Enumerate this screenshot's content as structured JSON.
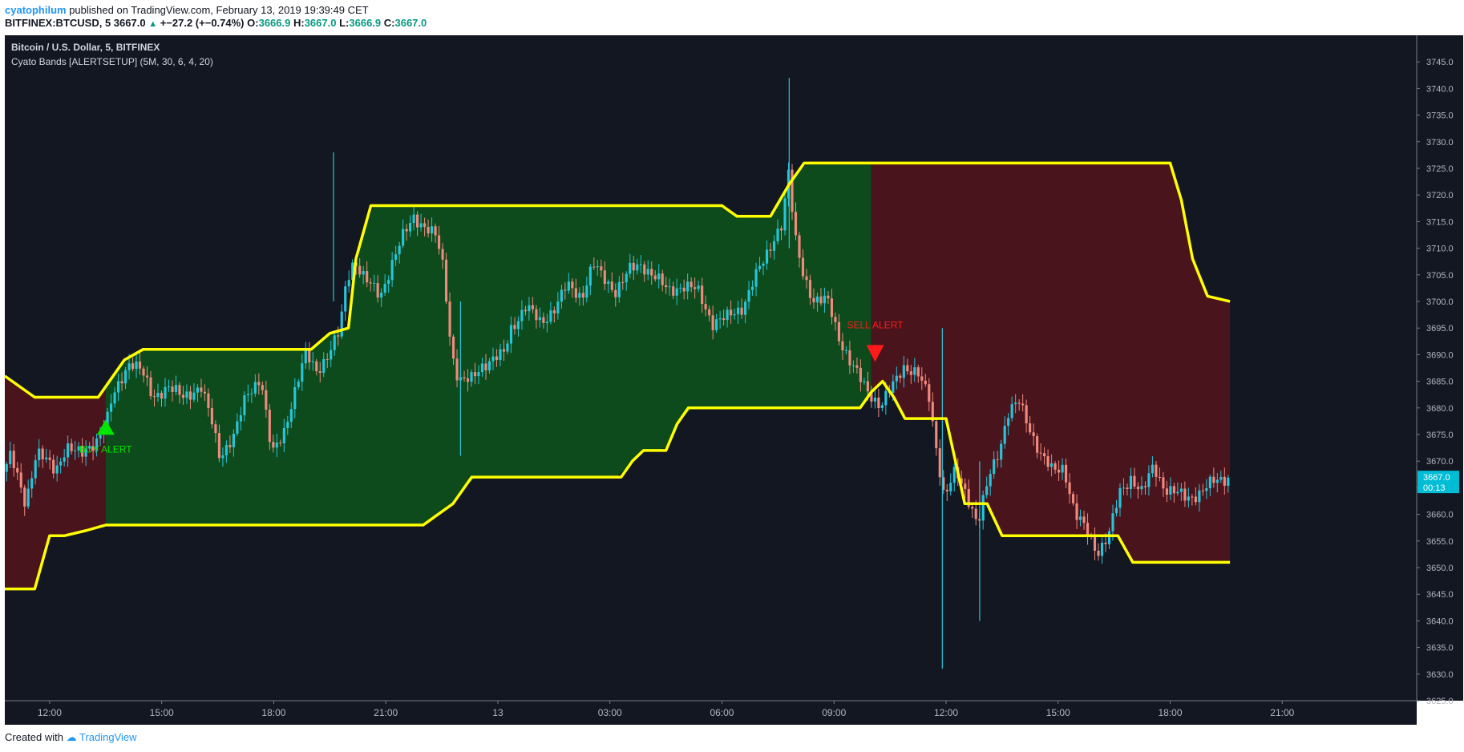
{
  "header": {
    "author": "cyatophilum",
    "published": "published on TradingView.com, February 13, 2019 19:39:49 CET",
    "symbol": "BITFINEX:BTCUSD, 5",
    "last": "3667.0",
    "change": "+−27.2 (+−0.74%)",
    "o_label": "O:",
    "o": "3666.9",
    "h_label": "H:",
    "h": "3667.0",
    "l_label": "L:",
    "l": "3666.9",
    "c_label": "C:",
    "c": "3667.0"
  },
  "footer": {
    "created": "Created with",
    "brand": "TradingView"
  },
  "colors": {
    "background": "#131722",
    "bull_candle": "#26c6da",
    "bear_candle": "#ef8a7d",
    "band": "#ffff00",
    "bull_fill": "#0d4a1c",
    "bear_fill": "#4a141c",
    "buy": "#00e600",
    "sell": "#ff1a1a"
  },
  "chart_data": {
    "type": "candlestick",
    "title": "Bitcoin / U.S. Dollar, 5, BITFINEX",
    "subtitle": "Cyato Bands [ALERTSETUP] (5M, 30, 6, 4, 20)",
    "ylim": [
      3625,
      3750
    ],
    "y_ticks": [
      "3745.0",
      "3740.0",
      "3735.0",
      "3730.0",
      "3725.0",
      "3720.0",
      "3715.0",
      "3710.0",
      "3705.0",
      "3700.0",
      "3695.0",
      "3690.0",
      "3685.0",
      "3680.0",
      "3675.0",
      "3670.0",
      "3665.0",
      "3660.0",
      "3655.0",
      "3650.0",
      "3645.0",
      "3640.0",
      "3635.0",
      "3630.0",
      "3625.0"
    ],
    "x_ticks": [
      {
        "label": "12:00",
        "t": 0
      },
      {
        "label": "15:00",
        "t": 3
      },
      {
        "label": "18:00",
        "t": 6
      },
      {
        "label": "21:00",
        "t": 9
      },
      {
        "label": "13",
        "t": 12
      },
      {
        "label": "03:00",
        "t": 15
      },
      {
        "label": "06:00",
        "t": 18
      },
      {
        "label": "09:00",
        "t": 21
      },
      {
        "label": "12:00",
        "t": 24
      },
      {
        "label": "15:00",
        "t": 27
      },
      {
        "label": "18:00",
        "t": 30
      },
      {
        "label": "21:00",
        "t": 33
      }
    ],
    "x_range_hours": [
      -1.2,
      36.6
    ],
    "price_window_hours": [
      -1.2,
      31.6
    ],
    "current_price_tag": "3667.0",
    "countdown": "00:13",
    "price_path": [
      [
        -1.2,
        3668
      ],
      [
        -1.0,
        3671
      ],
      [
        -0.6,
        3662
      ],
      [
        -0.3,
        3672
      ],
      [
        0.2,
        3668
      ],
      [
        0.5,
        3673
      ],
      [
        0.9,
        3671
      ],
      [
        1.3,
        3674
      ],
      [
        1.6,
        3678
      ],
      [
        1.7,
        3681
      ],
      [
        2.0,
        3686
      ],
      [
        2.2,
        3689
      ],
      [
        2.5,
        3687
      ],
      [
        2.8,
        3682
      ],
      [
        3.2,
        3684
      ],
      [
        3.6,
        3682
      ],
      [
        4.1,
        3684
      ],
      [
        4.4,
        3677
      ],
      [
        4.6,
        3671
      ],
      [
        5.0,
        3675
      ],
      [
        5.3,
        3682
      ],
      [
        5.7,
        3686
      ],
      [
        6.0,
        3671
      ],
      [
        6.3,
        3675
      ],
      [
        6.6,
        3683
      ],
      [
        6.9,
        3690
      ],
      [
        7.2,
        3687
      ],
      [
        7.5,
        3690
      ],
      [
        7.8,
        3694
      ],
      [
        8.0,
        3704
      ],
      [
        8.2,
        3708
      ],
      [
        8.5,
        3704
      ],
      [
        8.9,
        3701
      ],
      [
        9.2,
        3707
      ],
      [
        9.5,
        3712
      ],
      [
        9.8,
        3716
      ],
      [
        10.1,
        3714
      ],
      [
        10.4,
        3712
      ],
      [
        10.6,
        3706
      ],
      [
        10.8,
        3691
      ],
      [
        11.0,
        3685
      ],
      [
        11.3,
        3685
      ],
      [
        11.6,
        3688
      ],
      [
        11.9,
        3689
      ],
      [
        12.2,
        3690
      ],
      [
        12.4,
        3695
      ],
      [
        12.8,
        3699
      ],
      [
        13.2,
        3696
      ],
      [
        13.6,
        3699
      ],
      [
        13.9,
        3703
      ],
      [
        14.3,
        3701
      ],
      [
        14.6,
        3707
      ],
      [
        14.8,
        3705
      ],
      [
        15.2,
        3702
      ],
      [
        15.6,
        3706
      ],
      [
        15.9,
        3707
      ],
      [
        16.2,
        3705
      ],
      [
        16.6,
        3702
      ],
      [
        17.0,
        3703
      ],
      [
        17.4,
        3702
      ],
      [
        17.8,
        3696
      ],
      [
        18.2,
        3697
      ],
      [
        18.6,
        3699
      ],
      [
        18.9,
        3704
      ],
      [
        19.2,
        3708
      ],
      [
        19.5,
        3713
      ],
      [
        19.7,
        3715
      ],
      [
        19.8,
        3726
      ],
      [
        20.0,
        3712
      ],
      [
        20.2,
        3706
      ],
      [
        20.5,
        3700
      ],
      [
        20.9,
        3700
      ],
      [
        21.2,
        3693
      ],
      [
        21.5,
        3688
      ],
      [
        21.8,
        3685
      ],
      [
        22.0,
        3683
      ],
      [
        22.3,
        3680
      ],
      [
        22.6,
        3684
      ],
      [
        22.9,
        3688
      ],
      [
        23.3,
        3686
      ],
      [
        23.6,
        3682
      ],
      [
        23.8,
        3672
      ],
      [
        24.0,
        3663
      ],
      [
        24.3,
        3668
      ],
      [
        24.6,
        3664
      ],
      [
        24.9,
        3658
      ],
      [
        25.2,
        3667
      ],
      [
        25.5,
        3673
      ],
      [
        25.7,
        3679
      ],
      [
        26.0,
        3681
      ],
      [
        26.3,
        3676
      ],
      [
        26.6,
        3671
      ],
      [
        26.9,
        3668
      ],
      [
        27.2,
        3669
      ],
      [
        27.5,
        3660
      ],
      [
        27.8,
        3657
      ],
      [
        28.1,
        3653
      ],
      [
        28.4,
        3656
      ],
      [
        28.7,
        3664
      ],
      [
        29.0,
        3667
      ],
      [
        29.3,
        3664
      ],
      [
        29.6,
        3669
      ],
      [
        29.9,
        3665
      ],
      [
        30.2,
        3664
      ],
      [
        30.5,
        3663
      ],
      [
        30.8,
        3664
      ],
      [
        31.2,
        3666
      ],
      [
        31.6,
        3667
      ]
    ],
    "spikes": [
      {
        "t": 7.6,
        "high": 3728,
        "low": 3700
      },
      {
        "t": 11.0,
        "high": 3700,
        "low": 3671
      },
      {
        "t": 19.8,
        "high": 3742,
        "low": 3710
      },
      {
        "t": 23.9,
        "high": 3695,
        "low": 3631
      },
      {
        "t": 24.9,
        "high": 3670,
        "low": 3640
      }
    ],
    "series": [
      {
        "name": "upper band",
        "points": [
          [
            -1.2,
            3686
          ],
          [
            -0.4,
            3682
          ],
          [
            1.3,
            3682
          ],
          [
            2.0,
            3689
          ],
          [
            2.5,
            3691
          ],
          [
            7.0,
            3691
          ],
          [
            7.5,
            3694
          ],
          [
            8.0,
            3695
          ],
          [
            8.2,
            3708
          ],
          [
            8.6,
            3718
          ],
          [
            18.0,
            3718
          ],
          [
            18.4,
            3716
          ],
          [
            19.3,
            3716
          ],
          [
            19.8,
            3722
          ],
          [
            20.2,
            3726
          ],
          [
            30.0,
            3726
          ],
          [
            30.3,
            3719
          ],
          [
            30.6,
            3708
          ],
          [
            31.0,
            3701
          ],
          [
            31.6,
            3700
          ]
        ]
      },
      {
        "name": "lower band",
        "points": [
          [
            -1.2,
            3646
          ],
          [
            -0.4,
            3646
          ],
          [
            0.0,
            3656
          ],
          [
            0.4,
            3656
          ],
          [
            1.0,
            3657
          ],
          [
            1.5,
            3658
          ],
          [
            10.0,
            3658
          ],
          [
            10.4,
            3660
          ],
          [
            10.8,
            3662
          ],
          [
            11.3,
            3667
          ],
          [
            15.3,
            3667
          ],
          [
            15.6,
            3670
          ],
          [
            15.9,
            3672
          ],
          [
            16.5,
            3672
          ],
          [
            16.8,
            3677
          ],
          [
            17.1,
            3680
          ],
          [
            21.7,
            3680
          ],
          [
            22.0,
            3683
          ],
          [
            22.3,
            3685
          ],
          [
            22.6,
            3682
          ],
          [
            22.9,
            3678
          ],
          [
            24.0,
            3678
          ],
          [
            24.5,
            3662
          ],
          [
            25.1,
            3662
          ],
          [
            25.5,
            3656
          ],
          [
            28.6,
            3656
          ],
          [
            29.0,
            3651
          ],
          [
            31.6,
            3651
          ]
        ]
      }
    ],
    "regions": [
      {
        "state": "bear",
        "from": -1.2,
        "to": 1.5
      },
      {
        "state": "bull",
        "from": 1.5,
        "to": 22.0
      },
      {
        "state": "bear",
        "from": 22.0,
        "to": 31.6
      }
    ],
    "annotations": [
      {
        "text": "BUY ALERT",
        "t": 1.5,
        "price": 3676,
        "type": "buy"
      },
      {
        "text": "SELL ALERT",
        "t": 22.1,
        "price": 3690,
        "type": "sell"
      }
    ]
  }
}
